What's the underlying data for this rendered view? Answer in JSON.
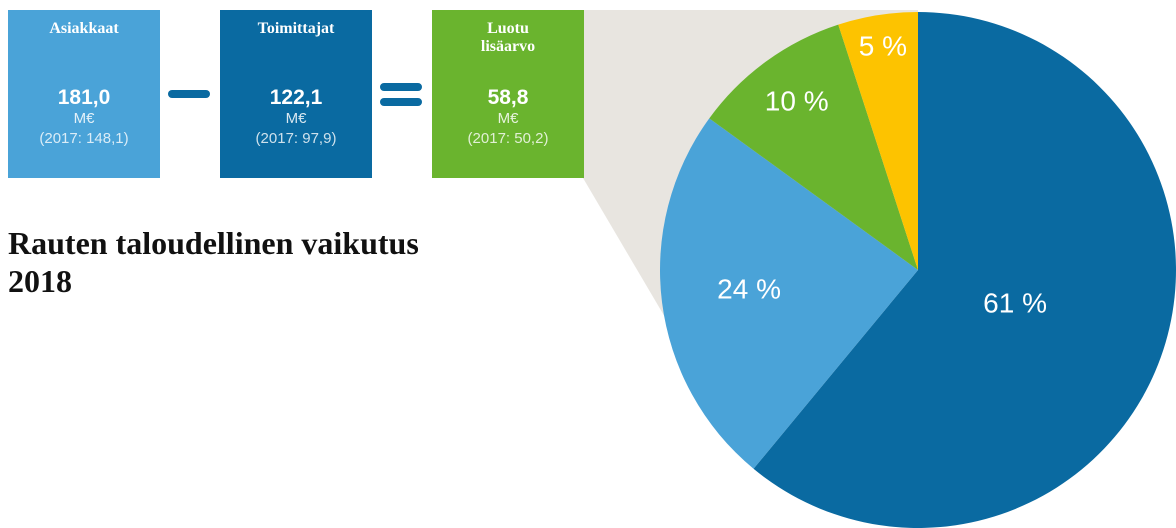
{
  "chart_data": {
    "type": "pie",
    "title": "Rauten taloudellinen vaikutus 2018",
    "boxes": [
      {
        "title": "Asiakkaat",
        "value": "181,0",
        "unit": "M€",
        "prior": "(2017: 148,1)",
        "color": "#4aa3d8"
      },
      {
        "title": "Toimittajat",
        "value": "122,1",
        "unit": "M€",
        "prior": "(2017: 97,9)",
        "color": "#0a6aa1"
      },
      {
        "title": "Luotu lisäarvo",
        "value": "58,8",
        "unit": "M€",
        "prior": "(2017: 50,2)",
        "color": "#6ab42e"
      }
    ],
    "values": [
      61,
      24,
      10,
      5
    ],
    "value_labels": [
      "61 %",
      "24 %",
      "10 %",
      "5 %"
    ],
    "colors": [
      "#0a6aa1",
      "#4aa3d8",
      "#6ab42e",
      "#fdc300"
    ]
  }
}
